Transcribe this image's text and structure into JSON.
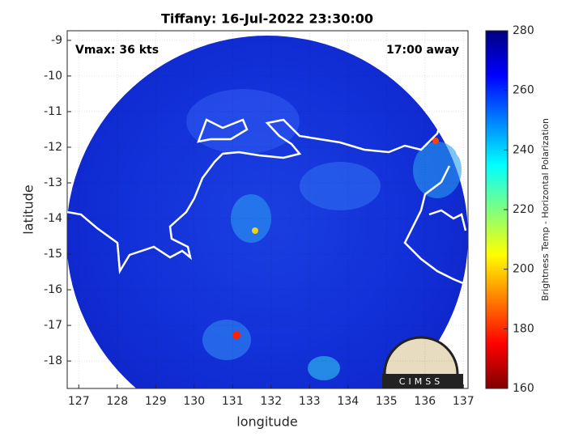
{
  "chart_data": {
    "type": "map",
    "title": "Tiffany: 16-Jul-2022 23:30:00",
    "xlabel": "longitude",
    "ylabel": "latitude",
    "xlim": [
      126.7,
      137.12
    ],
    "ylim": [
      -18.77,
      -8.73
    ],
    "xticks": [
      127,
      128,
      129,
      130,
      131,
      132,
      133,
      134,
      135,
      136,
      137
    ],
    "yticks": [
      -9,
      -10,
      -11,
      -12,
      -13,
      -14,
      -15,
      -16,
      -17,
      -18
    ],
    "grid": true,
    "annotations": {
      "vmax": "Vmax: 36 kts",
      "time": "17:00 away"
    },
    "logo": "CIMSS",
    "colorbar": {
      "label": "Brightness Temp - Horizontal Polarization",
      "lim": [
        160,
        280
      ],
      "ticks": [
        160,
        180,
        200,
        220,
        240,
        260,
        280
      ]
    }
  }
}
